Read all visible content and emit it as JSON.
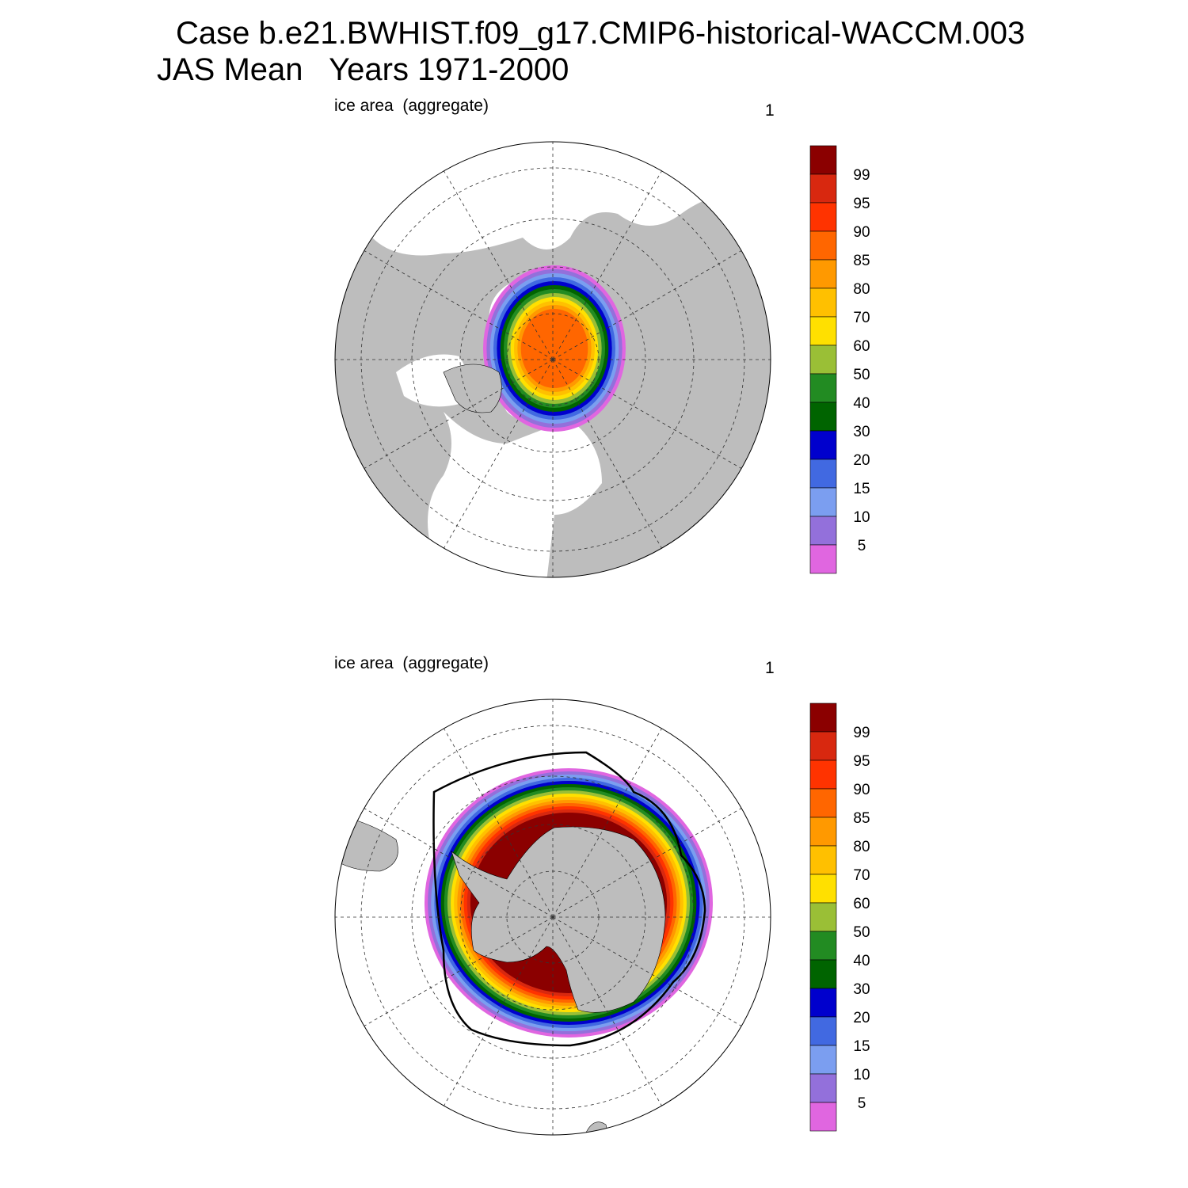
{
  "title": "Case b.e21.BWHIST.f09_g17.CMIP6-historical-WACCM.003",
  "subtitle": "JAS Mean   Years 1971-2000",
  "panels": [
    {
      "left_label": "ice area  (aggregate)",
      "right_label": "1"
    },
    {
      "left_label": "ice area  (aggregate)",
      "right_label": "1"
    }
  ],
  "colorbar": {
    "levels": [
      99,
      95,
      90,
      85,
      80,
      70,
      60,
      50,
      40,
      30,
      20,
      15,
      10,
      5
    ],
    "colors": [
      "#8b0000",
      "#d8280f",
      "#ff3300",
      "#ff6600",
      "#ff9900",
      "#ffc000",
      "#ffe000",
      "#9abf36",
      "#228b22",
      "#006400",
      "#0000cd",
      "#4169e1",
      "#7b9ef0",
      "#9370db",
      "#e066e0"
    ]
  }
}
